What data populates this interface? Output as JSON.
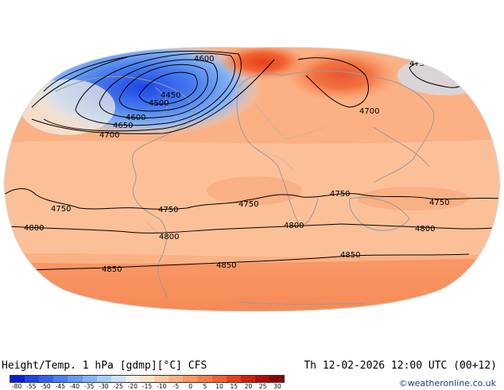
{
  "map": {
    "contours": [
      {
        "label": "4600"
      },
      {
        "label": "4450"
      },
      {
        "label": "4500"
      },
      {
        "label": "4600"
      },
      {
        "label": "4650"
      },
      {
        "label": "4700"
      },
      {
        "label": "4700"
      },
      {
        "label": "4750"
      },
      {
        "label": "4750"
      },
      {
        "label": "4750"
      },
      {
        "label": "4750"
      },
      {
        "label": "4750"
      },
      {
        "label": "4750"
      },
      {
        "label": "4800"
      },
      {
        "label": "4800"
      },
      {
        "label": "4800"
      },
      {
        "label": "4800"
      },
      {
        "label": "4850"
      },
      {
        "label": "4850"
      },
      {
        "label": "4850"
      }
    ]
  },
  "footer": {
    "title_left": "Height/Temp. 1 hPa [gdmp][°C] CFS",
    "title_right": "Th 12-02-2026 12:00 UTC (00+12)",
    "credit": "©weatheronline.co.uk"
  },
  "legend": {
    "colors": [
      "#0a1fd4",
      "#1c46e6",
      "#2f64ea",
      "#4a7fee",
      "#6699f1",
      "#86b3f5",
      "#a8cdf8",
      "#cce3fb",
      "#f4efe6",
      "#fde2c8",
      "#fdcaa6",
      "#fbb184",
      "#f89866",
      "#f57f4a",
      "#f0622f",
      "#e5401c",
      "#d12010",
      "#b10c0a",
      "#8a0606"
    ],
    "ticks": [
      "-80",
      "-55",
      "-50",
      "-45",
      "-40",
      "-35",
      "-30",
      "-25",
      "-20",
      "-15",
      "-10",
      "-5",
      "0",
      "5",
      "10",
      "15",
      "20",
      "25",
      "30"
    ]
  }
}
